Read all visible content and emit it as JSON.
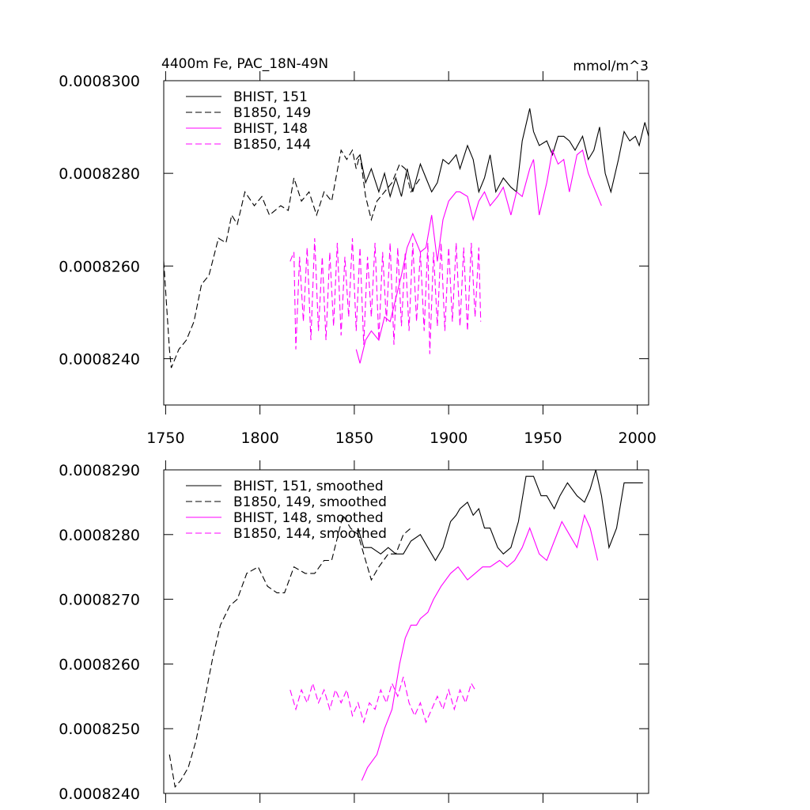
{
  "chart_data": [
    {
      "type": "line",
      "title": "4400m Fe, PAC_18N-49N",
      "units": "mmol/m^3",
      "xlim": [
        1749,
        2006
      ],
      "xticks": [
        1750,
        1800,
        1850,
        1900,
        1950,
        2000
      ],
      "ylim": [
        0.000823,
        0.00083
      ],
      "yticks": [
        {
          "value": 0.000824,
          "label": "0.0008240"
        },
        {
          "value": 0.000826,
          "label": "0.0008260"
        },
        {
          "value": 0.000828,
          "label": "0.0008280"
        },
        {
          "value": 0.00083,
          "label": "0.0008300"
        }
      ],
      "legend": "upper left",
      "series": [
        {
          "name": "BHIST, 151",
          "color": "#000000",
          "dashed": false,
          "x": [
            1851,
            1853,
            1856,
            1859,
            1863,
            1866,
            1869,
            1872,
            1875,
            1878,
            1881,
            1885,
            1888,
            1891,
            1894,
            1897,
            1900,
            1904,
            1906,
            1910,
            1913,
            1916,
            1919,
            1922,
            1925,
            1929,
            1933,
            1936,
            1939,
            1943,
            1945,
            1948,
            1952,
            1955,
            1958,
            1961,
            1964,
            1967,
            1971,
            1974,
            1977,
            1980,
            1983,
            1986,
            1990,
            1993,
            1996,
            1999,
            2001,
            2004,
            2006
          ],
          "values": [
            0.0008283,
            0.0008284,
            0.0008278,
            0.0008281,
            0.0008276,
            0.000828,
            0.0008275,
            0.0008279,
            0.0008275,
            0.0008281,
            0.0008276,
            0.0008282,
            0.0008279,
            0.0008276,
            0.0008278,
            0.0008283,
            0.0008282,
            0.0008284,
            0.0008281,
            0.0008286,
            0.0008283,
            0.0008276,
            0.0008279,
            0.0008284,
            0.0008276,
            0.0008279,
            0.0008277,
            0.0008276,
            0.0008287,
            0.0008294,
            0.0008289,
            0.0008286,
            0.0008287,
            0.0008284,
            0.0008288,
            0.0008288,
            0.0008287,
            0.0008285,
            0.0008288,
            0.0008283,
            0.0008285,
            0.000829,
            0.000828,
            0.0008276,
            0.0008283,
            0.0008289,
            0.0008287,
            0.0008288,
            0.0008286,
            0.0008291,
            0.0008288
          ]
        },
        {
          "name": "B1850, 149",
          "color": "#000000",
          "dashed": true,
          "x": [
            1749,
            1752,
            1753,
            1757,
            1761,
            1765,
            1769,
            1773,
            1778,
            1782,
            1785,
            1788,
            1792,
            1797,
            1801,
            1805,
            1811,
            1815,
            1818,
            1822,
            1826,
            1830,
            1834,
            1838,
            1843,
            1846,
            1849,
            1851,
            1853,
            1856,
            1859,
            1862,
            1866,
            1870,
            1874,
            1877,
            1880,
            1885
          ],
          "values": [
            0.0008261,
            0.0008242,
            0.0008238,
            0.0008242,
            0.0008244,
            0.0008248,
            0.0008256,
            0.0008258,
            0.0008266,
            0.0008265,
            0.0008271,
            0.0008269,
            0.0008276,
            0.0008273,
            0.0008275,
            0.0008271,
            0.0008273,
            0.0008272,
            0.0008279,
            0.0008274,
            0.0008276,
            0.0008271,
            0.0008276,
            0.0008274,
            0.0008285,
            0.0008283,
            0.0008285,
            0.0008281,
            0.0008284,
            0.0008275,
            0.000827,
            0.0008274,
            0.0008276,
            0.0008278,
            0.0008282,
            0.0008281,
            0.0008276,
            0.0008279
          ]
        },
        {
          "name": "BHIST, 148",
          "color": "#ff00ff",
          "dashed": false,
          "x": [
            1851,
            1853,
            1856,
            1859,
            1863,
            1866,
            1869,
            1872,
            1875,
            1878,
            1881,
            1885,
            1888,
            1891,
            1894,
            1897,
            1900,
            1904,
            1906,
            1910,
            1913,
            1916,
            1919,
            1922,
            1926,
            1929,
            1933,
            1936,
            1939,
            1943,
            1945,
            1948,
            1952,
            1955,
            1958,
            1961,
            1964,
            1968,
            1971,
            1974,
            1977,
            1981
          ],
          "values": [
            0.0008242,
            0.0008239,
            0.0008244,
            0.0008246,
            0.0008244,
            0.0008249,
            0.0008248,
            0.0008253,
            0.0008258,
            0.0008264,
            0.0008267,
            0.0008263,
            0.0008264,
            0.0008271,
            0.0008261,
            0.000827,
            0.0008274,
            0.0008276,
            0.0008276,
            0.0008275,
            0.000827,
            0.0008274,
            0.0008276,
            0.0008273,
            0.0008275,
            0.0008277,
            0.0008271,
            0.0008276,
            0.0008275,
            0.0008281,
            0.0008283,
            0.0008271,
            0.0008278,
            0.0008285,
            0.0008282,
            0.0008283,
            0.0008276,
            0.0008284,
            0.0008285,
            0.000828,
            0.0008277,
            0.0008273
          ]
        },
        {
          "name": "B1850, 144",
          "color": "#ff00ff",
          "dashed": true,
          "x": [
            1816,
            1818,
            1819,
            1821,
            1823,
            1825,
            1827,
            1829,
            1831,
            1833,
            1835,
            1837,
            1839,
            1841,
            1843,
            1845,
            1847,
            1849,
            1851,
            1853,
            1855,
            1857,
            1859,
            1861,
            1863,
            1865,
            1867,
            1869,
            1871,
            1873,
            1875,
            1877,
            1879,
            1881,
            1883,
            1885,
            1887,
            1889,
            1890,
            1892,
            1894,
            1896,
            1898,
            1900,
            1902,
            1904,
            1906,
            1908,
            1910,
            1912,
            1914,
            1916,
            1917
          ],
          "values": [
            0.0008261,
            0.0008263,
            0.0008242,
            0.0008262,
            0.0008248,
            0.0008264,
            0.0008244,
            0.0008266,
            0.0008246,
            0.0008262,
            0.0008244,
            0.0008263,
            0.0008247,
            0.0008265,
            0.0008245,
            0.0008262,
            0.0008249,
            0.0008266,
            0.0008246,
            0.0008264,
            0.0008243,
            0.0008262,
            0.0008249,
            0.0008265,
            0.0008244,
            0.0008263,
            0.0008248,
            0.0008265,
            0.0008243,
            0.0008264,
            0.0008247,
            0.0008263,
            0.0008246,
            0.0008265,
            0.0008248,
            0.0008263,
            0.0008246,
            0.0008265,
            0.0008241,
            0.0008263,
            0.0008247,
            0.0008265,
            0.0008246,
            0.0008264,
            0.0008248,
            0.0008265,
            0.0008247,
            0.0008264,
            0.0008246,
            0.0008265,
            0.0008249,
            0.0008264,
            0.0008248
          ]
        }
      ]
    },
    {
      "type": "line",
      "xlim": [
        1749,
        2006
      ],
      "xticks": [
        1750,
        1800,
        1850,
        1900,
        1950,
        2000
      ],
      "ylim": [
        0.000824,
        0.000829
      ],
      "yticks": [
        {
          "value": 0.000824,
          "label": "0.0008240"
        },
        {
          "value": 0.000825,
          "label": "0.0008250"
        },
        {
          "value": 0.000826,
          "label": "0.0008260"
        },
        {
          "value": 0.000827,
          "label": "0.0008270"
        },
        {
          "value": 0.000828,
          "label": "0.0008280"
        },
        {
          "value": 0.000829,
          "label": "0.0008290"
        }
      ],
      "legend": "upper left",
      "series": [
        {
          "name": "BHIST, 151, smoothed",
          "color": "#000000",
          "dashed": false,
          "x": [
            1852,
            1855,
            1859,
            1864,
            1868,
            1872,
            1876,
            1880,
            1885,
            1889,
            1893,
            1897,
            1901,
            1904,
            1906,
            1910,
            1913,
            1916,
            1919,
            1922,
            1926,
            1929,
            1933,
            1937,
            1941,
            1945,
            1949,
            1952,
            1956,
            1959,
            1963,
            1968,
            1972,
            1975,
            1978,
            1981,
            1985,
            1989,
            1993,
            1997,
            2000,
            2003
          ],
          "values": [
            0.0008281,
            0.0008278,
            0.0008278,
            0.0008277,
            0.0008278,
            0.0008277,
            0.0008277,
            0.0008279,
            0.000828,
            0.0008278,
            0.0008276,
            0.0008278,
            0.0008282,
            0.0008283,
            0.0008284,
            0.0008285,
            0.0008283,
            0.0008284,
            0.0008281,
            0.0008281,
            0.0008278,
            0.0008277,
            0.0008278,
            0.0008282,
            0.0008289,
            0.0008289,
            0.0008286,
            0.0008286,
            0.0008284,
            0.0008286,
            0.0008288,
            0.0008286,
            0.0008285,
            0.0008287,
            0.000829,
            0.0008286,
            0.0008278,
            0.0008281,
            0.0008288,
            0.0008288,
            0.0008288,
            0.0008288
          ]
        },
        {
          "name": "B1850, 149, smoothed",
          "color": "#000000",
          "dashed": true,
          "x": [
            1752,
            1755,
            1758,
            1762,
            1766,
            1771,
            1775,
            1779,
            1784,
            1788,
            1793,
            1799,
            1804,
            1809,
            1813,
            1818,
            1824,
            1829,
            1834,
            1838,
            1844,
            1848,
            1852,
            1855,
            1859,
            1863,
            1868,
            1872,
            1876,
            1880
          ],
          "values": [
            0.0008246,
            0.0008241,
            0.0008242,
            0.0008244,
            0.0008248,
            0.0008255,
            0.0008261,
            0.0008266,
            0.0008269,
            0.000827,
            0.0008274,
            0.0008275,
            0.0008272,
            0.0008271,
            0.0008271,
            0.0008275,
            0.0008274,
            0.0008274,
            0.0008276,
            0.0008276,
            0.0008283,
            0.0008281,
            0.000828,
            0.0008277,
            0.0008273,
            0.0008275,
            0.0008277,
            0.0008277,
            0.000828,
            0.0008281
          ]
        },
        {
          "name": "BHIST, 148, smoothed",
          "color": "#ff00ff",
          "dashed": false,
          "x": [
            1854,
            1857,
            1862,
            1866,
            1870,
            1874,
            1877,
            1880,
            1883,
            1885,
            1889,
            1892,
            1896,
            1901,
            1905,
            1910,
            1914,
            1918,
            1922,
            1927,
            1931,
            1935,
            1939,
            1943,
            1948,
            1952,
            1956,
            1960,
            1964,
            1968,
            1972,
            1975,
            1979
          ],
          "values": [
            0.0008242,
            0.0008244,
            0.0008246,
            0.000825,
            0.0008253,
            0.000826,
            0.0008264,
            0.0008266,
            0.0008266,
            0.0008267,
            0.0008268,
            0.000827,
            0.0008272,
            0.0008274,
            0.0008275,
            0.0008273,
            0.0008274,
            0.0008275,
            0.0008275,
            0.0008276,
            0.0008275,
            0.0008276,
            0.0008278,
            0.0008281,
            0.0008277,
            0.0008276,
            0.0008279,
            0.0008282,
            0.000828,
            0.0008278,
            0.0008283,
            0.0008281,
            0.0008276
          ]
        },
        {
          "name": "B1850, 144, smoothed",
          "color": "#ff00ff",
          "dashed": true,
          "x": [
            1816,
            1819,
            1822,
            1825,
            1828,
            1831,
            1834,
            1837,
            1840,
            1843,
            1846,
            1849,
            1852,
            1855,
            1858,
            1861,
            1864,
            1867,
            1870,
            1873,
            1876,
            1879,
            1882,
            1885,
            1888,
            1891,
            1894,
            1897,
            1900,
            1903,
            1906,
            1909,
            1912,
            1914
          ],
          "values": [
            0.0008256,
            0.0008253,
            0.0008256,
            0.0008254,
            0.0008257,
            0.0008254,
            0.0008256,
            0.0008253,
            0.0008256,
            0.0008254,
            0.0008256,
            0.0008252,
            0.0008254,
            0.0008251,
            0.0008254,
            0.0008253,
            0.0008256,
            0.0008254,
            0.0008257,
            0.0008255,
            0.0008258,
            0.0008254,
            0.0008252,
            0.0008254,
            0.0008251,
            0.0008253,
            0.0008255,
            0.0008253,
            0.0008256,
            0.0008253,
            0.0008256,
            0.0008254,
            0.0008257,
            0.0008256
          ]
        }
      ]
    }
  ]
}
